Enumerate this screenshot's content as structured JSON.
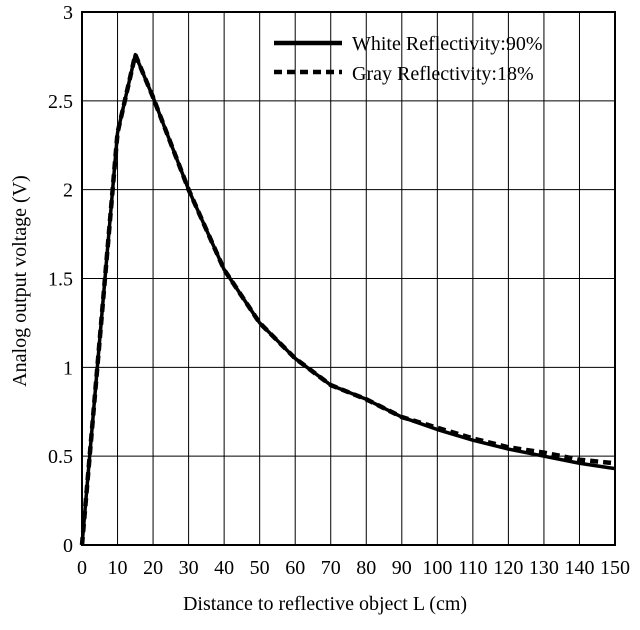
{
  "chart_data": {
    "type": "line",
    "title": "",
    "xlabel": "Distance to reflective object L (cm)",
    "ylabel": "Analog output voltage (V)",
    "xlim": [
      0,
      150
    ],
    "ylim": [
      0,
      3
    ],
    "xticks": [
      0,
      10,
      20,
      30,
      40,
      50,
      60,
      70,
      80,
      90,
      100,
      110,
      120,
      130,
      140,
      150
    ],
    "yticks": [
      0,
      0.5,
      1,
      1.5,
      2,
      2.5,
      3
    ],
    "ytick_labels": [
      "0",
      "0.5",
      "1",
      "1.5",
      "2",
      "2.5",
      "3"
    ],
    "grid": true,
    "legend_position": "top-right",
    "series": [
      {
        "name": "White Reflectivity:90%",
        "style": "solid",
        "color": "#000000",
        "x": [
          0,
          10,
          15,
          20,
          30,
          40,
          50,
          60,
          70,
          80,
          90,
          100,
          110,
          120,
          130,
          140,
          150
        ],
        "y": [
          0,
          2.32,
          2.76,
          2.52,
          2.0,
          1.55,
          1.25,
          1.05,
          0.9,
          0.82,
          0.72,
          0.65,
          0.59,
          0.54,
          0.5,
          0.46,
          0.43
        ]
      },
      {
        "name": "Gray Reflectivity:18%",
        "style": "dashed",
        "color": "#000000",
        "x": [
          0,
          10,
          15,
          20,
          30,
          40,
          50,
          60,
          70,
          80,
          90,
          100,
          110,
          120,
          130,
          140,
          150
        ],
        "y": [
          0,
          2.32,
          2.76,
          2.52,
          2.0,
          1.55,
          1.25,
          1.05,
          0.9,
          0.82,
          0.72,
          0.66,
          0.6,
          0.55,
          0.52,
          0.48,
          0.46
        ]
      }
    ]
  }
}
